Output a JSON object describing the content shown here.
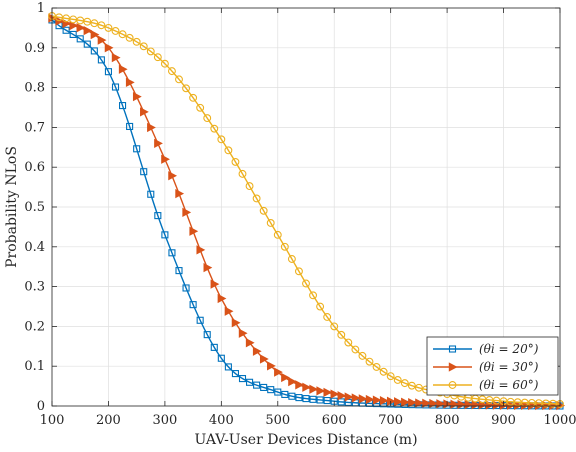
{
  "chart_data": {
    "type": "line",
    "xlabel": "UAV-User Devices Distance (m)",
    "ylabel": "Probability NLoS",
    "xlim": [
      100,
      1000
    ],
    "ylim": [
      0,
      1
    ],
    "xticks": [
      100,
      200,
      300,
      400,
      500,
      600,
      700,
      800,
      900,
      1000
    ],
    "yticks": [
      0,
      0.1,
      0.2,
      0.3,
      0.4,
      0.5,
      0.6,
      0.7,
      0.8,
      0.9,
      1
    ],
    "xtick_labels": [
      "100",
      "200",
      "300",
      "400",
      "500",
      "600",
      "700",
      "800",
      "900",
      "1000"
    ],
    "ytick_labels": [
      "0",
      "0.1",
      "0.2",
      "0.3",
      "0.4",
      "0.5",
      "0.6",
      "0.7",
      "0.8",
      "0.9",
      "1"
    ],
    "grid": true,
    "legend_position": "bottom-right",
    "x": [
      100,
      200,
      300,
      400,
      500,
      600,
      700,
      800,
      900,
      1000
    ],
    "series": [
      {
        "name": "(θi = 20°)",
        "marker": "square",
        "color": "#0072BD",
        "values": [
          0.97,
          0.84,
          0.43,
          0.12,
          0.035,
          0.012,
          0.005,
          0.002,
          0.001,
          0.0
        ]
      },
      {
        "name": "(θi = 30°)",
        "marker": "triangle-right",
        "color": "#D95319",
        "values": [
          0.975,
          0.9,
          0.62,
          0.27,
          0.085,
          0.03,
          0.012,
          0.005,
          0.002,
          0.001
        ]
      },
      {
        "name": "(θi = 60°)",
        "marker": "circle",
        "color": "#EDB120",
        "values": [
          0.98,
          0.95,
          0.86,
          0.67,
          0.43,
          0.2,
          0.075,
          0.03,
          0.012,
          0.005
        ]
      }
    ]
  }
}
